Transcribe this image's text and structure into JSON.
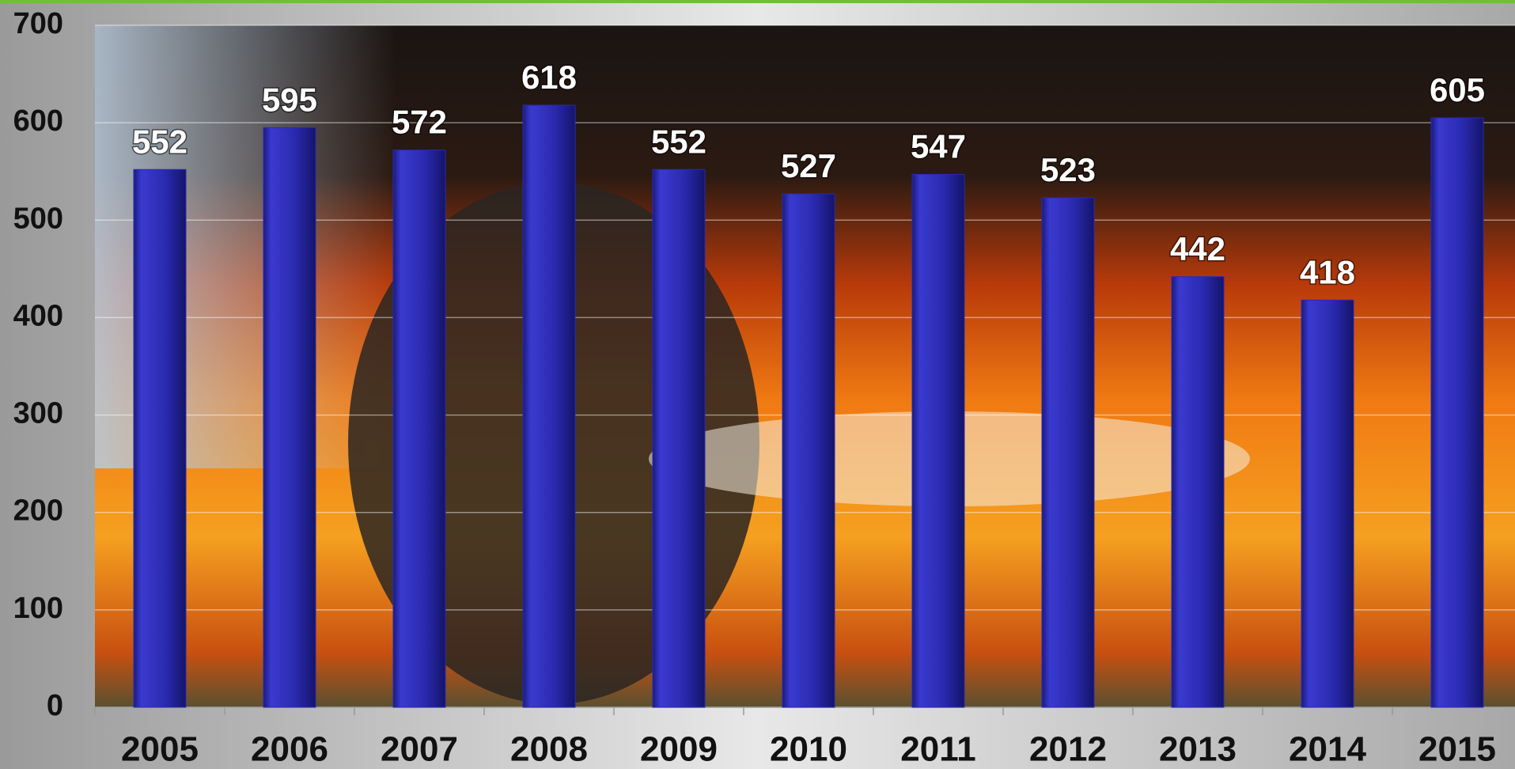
{
  "chart_data": {
    "type": "bar",
    "categories": [
      "2005",
      "2006",
      "2007",
      "2008",
      "2009",
      "2010",
      "2011",
      "2012",
      "2013",
      "2014",
      "2015"
    ],
    "values": [
      552,
      595,
      572,
      618,
      552,
      527,
      547,
      523,
      442,
      418,
      605
    ],
    "color": "#2a2ab0",
    "ylim": [
      0,
      700
    ],
    "yticks": [
      0,
      100,
      200,
      300,
      400,
      500,
      600,
      700
    ],
    "grid": true
  }
}
